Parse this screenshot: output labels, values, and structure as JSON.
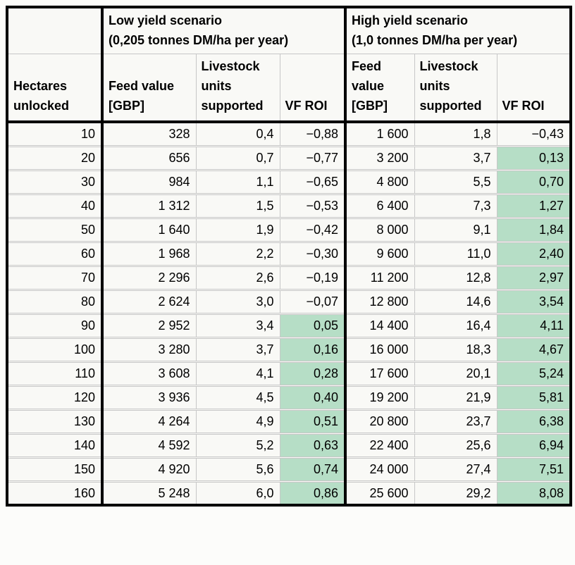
{
  "colors": {
    "highlight_green": "#b6dec6",
    "grid_line": "#c7c7c7",
    "thick_border": "#000000",
    "cell_background": "#f9f9f6",
    "page_background": "#fcfcfa"
  },
  "chart_data": {
    "type": "table",
    "row_header_label": "Hectares unlocked",
    "groups": [
      {
        "name": "Low yield scenario",
        "subtitle": "(0,205 tonnes DM/ha per year)",
        "columns": [
          "Feed value [GBP]",
          "Livestock units supported",
          "VF ROI"
        ]
      },
      {
        "name": "High yield scenario",
        "subtitle": "(1,0 tonnes DM/ha per year)",
        "columns": [
          "Feed value [GBP]",
          "Livestock units supported",
          "VF ROI"
        ]
      }
    ],
    "rows": [
      {
        "hectares": "10",
        "low_feed": "328",
        "low_units": "0,4",
        "low_roi": "−0,88",
        "low_roi_highlight": false,
        "high_feed": "1 600",
        "high_units": "1,8",
        "high_roi": "−0,43",
        "high_roi_highlight": false
      },
      {
        "hectares": "20",
        "low_feed": "656",
        "low_units": "0,7",
        "low_roi": "−0,77",
        "low_roi_highlight": false,
        "high_feed": "3 200",
        "high_units": "3,7",
        "high_roi": "0,13",
        "high_roi_highlight": true
      },
      {
        "hectares": "30",
        "low_feed": "984",
        "low_units": "1,1",
        "low_roi": "−0,65",
        "low_roi_highlight": false,
        "high_feed": "4 800",
        "high_units": "5,5",
        "high_roi": "0,70",
        "high_roi_highlight": true
      },
      {
        "hectares": "40",
        "low_feed": "1 312",
        "low_units": "1,5",
        "low_roi": "−0,53",
        "low_roi_highlight": false,
        "high_feed": "6 400",
        "high_units": "7,3",
        "high_roi": "1,27",
        "high_roi_highlight": true
      },
      {
        "hectares": "50",
        "low_feed": "1 640",
        "low_units": "1,9",
        "low_roi": "−0,42",
        "low_roi_highlight": false,
        "high_feed": "8 000",
        "high_units": "9,1",
        "high_roi": "1,84",
        "high_roi_highlight": true
      },
      {
        "hectares": "60",
        "low_feed": "1 968",
        "low_units": "2,2",
        "low_roi": "−0,30",
        "low_roi_highlight": false,
        "high_feed": "9 600",
        "high_units": "11,0",
        "high_roi": "2,40",
        "high_roi_highlight": true
      },
      {
        "hectares": "70",
        "low_feed": "2 296",
        "low_units": "2,6",
        "low_roi": "−0,19",
        "low_roi_highlight": false,
        "high_feed": "11 200",
        "high_units": "12,8",
        "high_roi": "2,97",
        "high_roi_highlight": true
      },
      {
        "hectares": "80",
        "low_feed": "2 624",
        "low_units": "3,0",
        "low_roi": "−0,07",
        "low_roi_highlight": false,
        "high_feed": "12 800",
        "high_units": "14,6",
        "high_roi": "3,54",
        "high_roi_highlight": true
      },
      {
        "hectares": "90",
        "low_feed": "2 952",
        "low_units": "3,4",
        "low_roi": "0,05",
        "low_roi_highlight": true,
        "high_feed": "14 400",
        "high_units": "16,4",
        "high_roi": "4,11",
        "high_roi_highlight": true
      },
      {
        "hectares": "100",
        "low_feed": "3 280",
        "low_units": "3,7",
        "low_roi": "0,16",
        "low_roi_highlight": true,
        "high_feed": "16 000",
        "high_units": "18,3",
        "high_roi": "4,67",
        "high_roi_highlight": true
      },
      {
        "hectares": "110",
        "low_feed": "3 608",
        "low_units": "4,1",
        "low_roi": "0,28",
        "low_roi_highlight": true,
        "high_feed": "17 600",
        "high_units": "20,1",
        "high_roi": "5,24",
        "high_roi_highlight": true
      },
      {
        "hectares": "120",
        "low_feed": "3 936",
        "low_units": "4,5",
        "low_roi": "0,40",
        "low_roi_highlight": true,
        "high_feed": "19 200",
        "high_units": "21,9",
        "high_roi": "5,81",
        "high_roi_highlight": true
      },
      {
        "hectares": "130",
        "low_feed": "4 264",
        "low_units": "4,9",
        "low_roi": "0,51",
        "low_roi_highlight": true,
        "high_feed": "20 800",
        "high_units": "23,7",
        "high_roi": "6,38",
        "high_roi_highlight": true
      },
      {
        "hectares": "140",
        "low_feed": "4 592",
        "low_units": "5,2",
        "low_roi": "0,63",
        "low_roi_highlight": true,
        "high_feed": "22 400",
        "high_units": "25,6",
        "high_roi": "6,94",
        "high_roi_highlight": true
      },
      {
        "hectares": "150",
        "low_feed": "4 920",
        "low_units": "5,6",
        "low_roi": "0,74",
        "low_roi_highlight": true,
        "high_feed": "24 000",
        "high_units": "27,4",
        "high_roi": "7,51",
        "high_roi_highlight": true
      },
      {
        "hectares": "160",
        "low_feed": "5 248",
        "low_units": "6,0",
        "low_roi": "0,86",
        "low_roi_highlight": true,
        "high_feed": "25 600",
        "high_units": "29,2",
        "high_roi": "8,08",
        "high_roi_highlight": true
      }
    ]
  }
}
